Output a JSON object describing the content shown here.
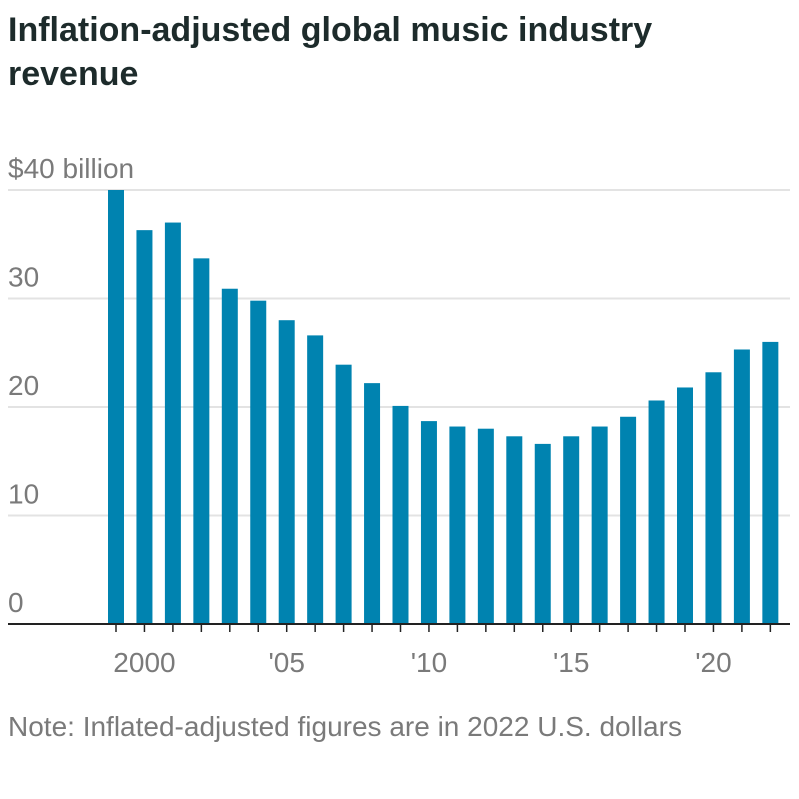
{
  "chart_data": {
    "type": "bar",
    "title": "Inflation-adjusted global music industry revenue",
    "ylabel": "$40 billion",
    "xlabel": "",
    "ylim": [
      0,
      40
    ],
    "yticks": [
      0,
      10,
      20,
      30,
      40
    ],
    "ytick_labels": [
      "0",
      "10",
      "20",
      "30",
      "$40 billion"
    ],
    "categories": [
      1999,
      2000,
      2001,
      2002,
      2003,
      2004,
      2005,
      2006,
      2007,
      2008,
      2009,
      2010,
      2011,
      2012,
      2013,
      2014,
      2015,
      2016,
      2017,
      2018,
      2019,
      2020,
      2021,
      2022
    ],
    "values": [
      40.0,
      36.3,
      37.0,
      33.7,
      30.9,
      29.8,
      28.0,
      26.6,
      23.9,
      22.2,
      20.1,
      18.7,
      18.2,
      18.0,
      17.3,
      16.6,
      17.3,
      18.2,
      19.1,
      20.6,
      21.8,
      23.2,
      25.3,
      26.0
    ],
    "xticks": [
      2000,
      2005,
      2010,
      2015,
      2020
    ],
    "xtick_labels": [
      "2000",
      "'05",
      "'10",
      "'15",
      "'20"
    ],
    "grid": true,
    "bar_color": "#0083b0",
    "note": "Note: Inflated-adjusted figures are in 2022 U.S. dollars"
  }
}
